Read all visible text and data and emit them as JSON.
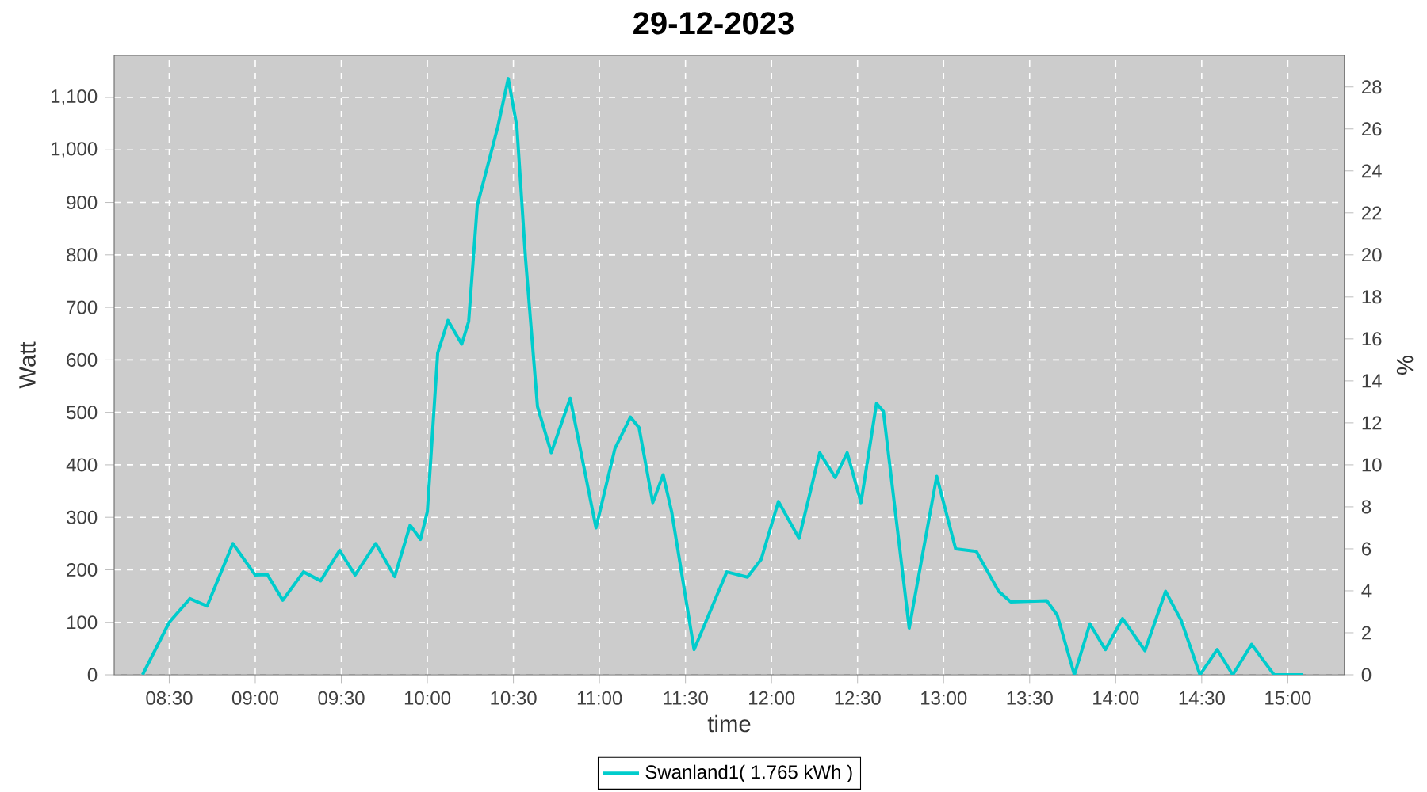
{
  "chart_data": {
    "type": "line",
    "title": "29-12-2023",
    "xlabel": "time",
    "ylabel": "Watt",
    "y2label": "%",
    "x": [
      8.345,
      8.5,
      8.62,
      8.72,
      8.87,
      9.0,
      9.07,
      9.16,
      9.28,
      9.38,
      9.49,
      9.58,
      9.7,
      9.81,
      9.9,
      9.96,
      10.0,
      10.06,
      10.12,
      10.2,
      10.24,
      10.29,
      10.41,
      10.47,
      10.52,
      10.57,
      10.64,
      10.72,
      10.83,
      10.98,
      11.09,
      11.18,
      11.23,
      11.31,
      11.37,
      11.42,
      11.55,
      11.74,
      11.86,
      11.94,
      12.04,
      12.16,
      12.28,
      12.37,
      12.44,
      12.52,
      12.61,
      12.65,
      12.8,
      12.96,
      13.07,
      13.19,
      13.32,
      13.39,
      13.6,
      13.66,
      13.76,
      13.85,
      13.94,
      14.04,
      14.17,
      14.29,
      14.38,
      14.49,
      14.59,
      14.68,
      14.79,
      14.92,
      15.09
    ],
    "series": [
      {
        "name": "Swanland1( 1.765 kWh )",
        "color": "#00cccc",
        "values": [
          0,
          100,
          145,
          131,
          250,
          190,
          191,
          142,
          196,
          179,
          237,
          190,
          250,
          187,
          285,
          258,
          311,
          613,
          675,
          630,
          673,
          894,
          1045,
          1136,
          1045,
          795,
          511,
          423,
          527,
          280,
          431,
          491,
          471,
          328,
          381,
          310,
          48,
          196,
          186,
          220,
          330,
          260,
          423,
          376,
          423,
          328,
          517,
          502,
          89,
          378,
          240,
          235,
          159,
          139,
          141,
          114,
          0,
          97,
          48,
          107,
          46,
          159,
          104,
          0,
          48,
          0,
          58,
          0,
          0
        ]
      }
    ],
    "xlim": [
      8.18,
      15.33
    ],
    "ylim": [
      0,
      1180
    ],
    "y2lim": [
      0,
      29.5
    ],
    "xticks": [
      {
        "value": 8.5,
        "label": "08:30"
      },
      {
        "value": 9,
        "label": "09:00"
      },
      {
        "value": 9.5,
        "label": "09:30"
      },
      {
        "value": 10,
        "label": "10:00"
      },
      {
        "value": 10.5,
        "label": "10:30"
      },
      {
        "value": 11,
        "label": "11:00"
      },
      {
        "value": 11.5,
        "label": "11:30"
      },
      {
        "value": 12,
        "label": "12:00"
      },
      {
        "value": 12.5,
        "label": "12:30"
      },
      {
        "value": 13,
        "label": "13:00"
      },
      {
        "value": 13.5,
        "label": "13:30"
      },
      {
        "value": 14,
        "label": "14:00"
      },
      {
        "value": 14.5,
        "label": "14:30"
      },
      {
        "value": 15,
        "label": "15:00"
      }
    ],
    "yticks": [
      0,
      100,
      200,
      300,
      400,
      500,
      600,
      700,
      800,
      900,
      {
        "value": 1000,
        "label": "1,000"
      },
      {
        "value": 1100,
        "label": "1,100"
      }
    ],
    "y2ticks": [
      0,
      2,
      4,
      6,
      8,
      10,
      12,
      14,
      16,
      18,
      20,
      22,
      24,
      26,
      28
    ],
    "grid": true,
    "legend": "bottom",
    "marker": "none",
    "line_style": "solid"
  }
}
